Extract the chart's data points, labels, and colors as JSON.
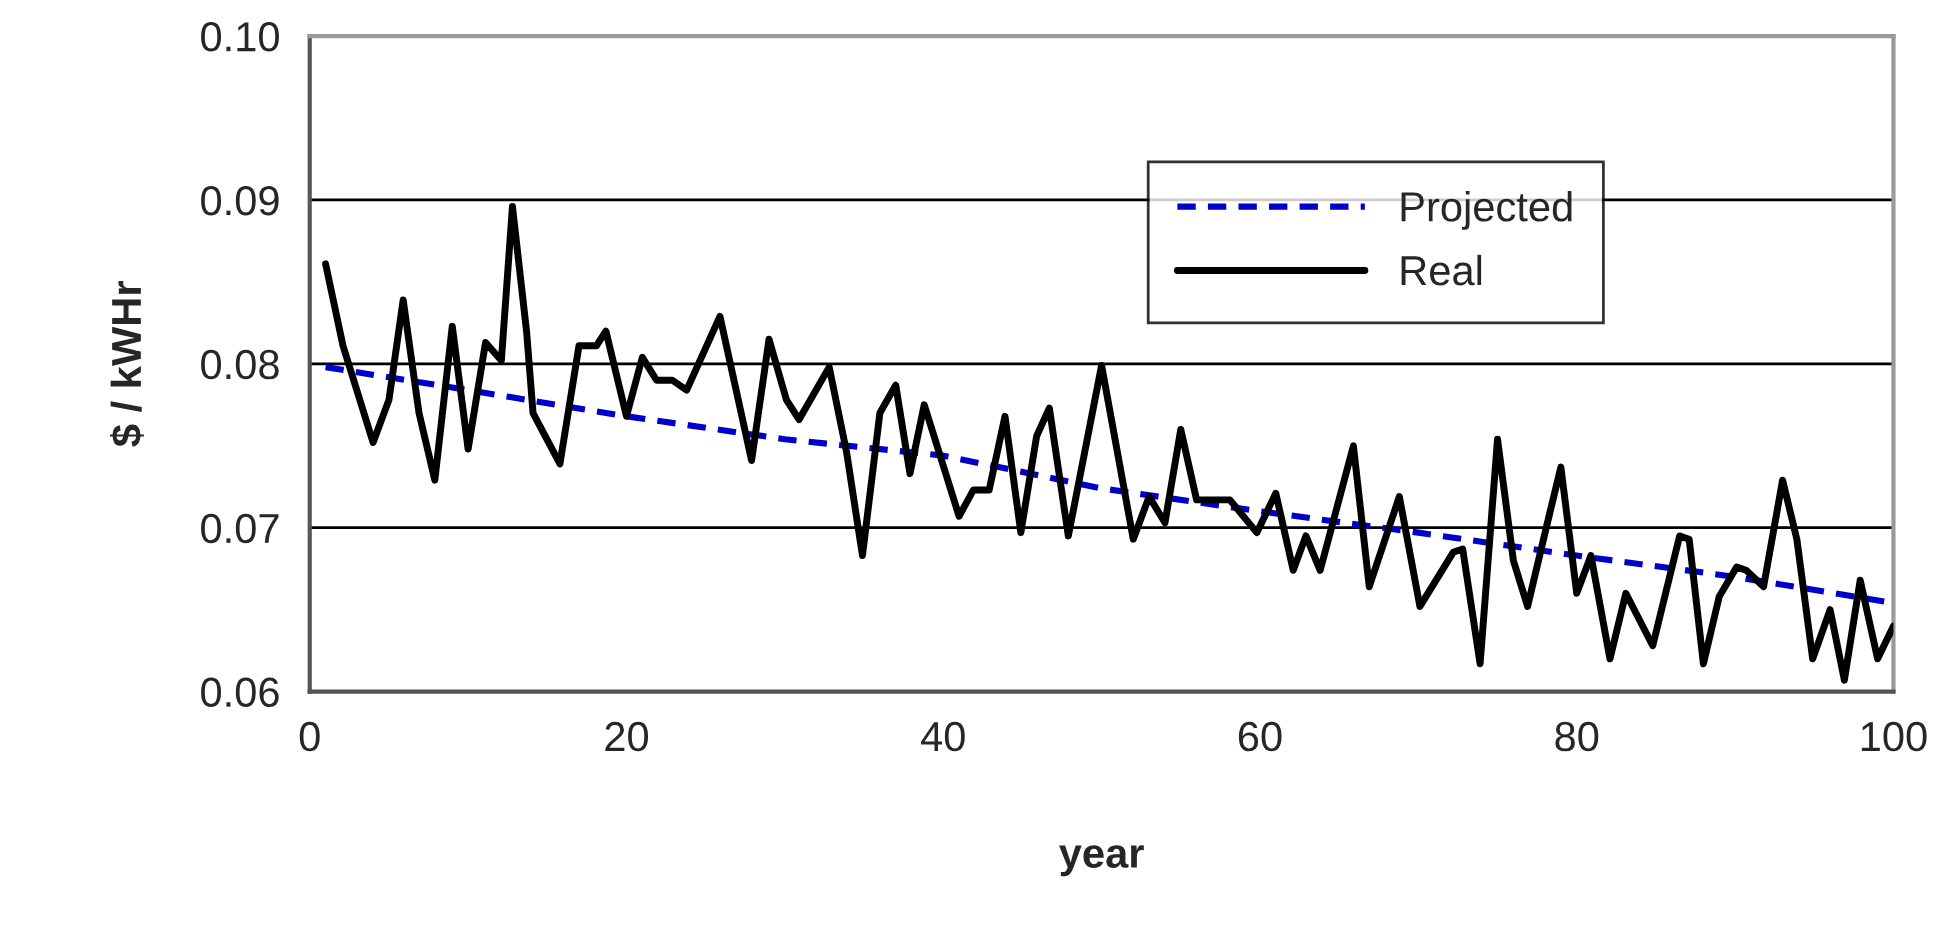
{
  "chart_data": {
    "type": "line",
    "xlabel": "year",
    "ylabel": "$ / kWHr",
    "xlim": [
      0,
      100
    ],
    "xticks": [
      0,
      20,
      40,
      60,
      80,
      100
    ],
    "ylim": [
      0.06,
      0.1
    ],
    "yticks": [
      {
        "value": 0.06,
        "label": "0.06"
      },
      {
        "value": 0.07,
        "label": "0.07"
      },
      {
        "value": 0.08,
        "label": "0.08"
      },
      {
        "value": 0.09,
        "label": "0.09"
      },
      {
        "value": 0.1,
        "label": "0.10"
      }
    ],
    "grid": "y",
    "legend": "top right",
    "marker": "none",
    "series": [
      {
        "name": "Projected",
        "color": "#0000cc",
        "line_style": "dashed",
        "x": [
          1,
          10,
          20,
          30,
          40,
          50,
          60,
          70,
          80,
          90,
          100
        ],
        "values": [
          0.0798,
          0.0784,
          0.0768,
          0.0754,
          0.0744,
          0.0724,
          0.071,
          0.0697,
          0.0683,
          0.067,
          0.0654
        ]
      },
      {
        "name": "Real",
        "color": "#000000",
        "line_style": "solid",
        "x": [
          1,
          2.1,
          4,
          5,
          5.9,
          6.9,
          7.9,
          9,
          10,
          11.1,
          12.1,
          12.8,
          13.7,
          14.1,
          15.8,
          17,
          18.1,
          18.7,
          20,
          21,
          21.9,
          22.9,
          23.8,
          25.9,
          27.9,
          29,
          30.1,
          30.9,
          32.8,
          33.9,
          34.9,
          36,
          37,
          37.9,
          38.8,
          41,
          41.9,
          42.9,
          43.9,
          44.9,
          45.9,
          46.7,
          47.9,
          50,
          52,
          53,
          54,
          55,
          56,
          58.1,
          59.8,
          61,
          62.1,
          62.9,
          63.8,
          65.9,
          66.9,
          68.8,
          70.1,
          72.2,
          72.8,
          73.9,
          75,
          76,
          76.9,
          78.1,
          79,
          80,
          80.9,
          82.1,
          83.1,
          84.8,
          86.5,
          87.1,
          88,
          89,
          90.1,
          90.7,
          91.8,
          93,
          93.9,
          94.9,
          96,
          96.9,
          97.9,
          99,
          100
        ],
        "values": [
          0.0861,
          0.0811,
          0.0752,
          0.0778,
          0.0839,
          0.077,
          0.0729,
          0.0823,
          0.0748,
          0.0813,
          0.0802,
          0.0896,
          0.0819,
          0.077,
          0.0739,
          0.0811,
          0.0811,
          0.082,
          0.0768,
          0.0804,
          0.079,
          0.079,
          0.0784,
          0.0829,
          0.0741,
          0.0815,
          0.0778,
          0.0766,
          0.0798,
          0.0746,
          0.0683,
          0.077,
          0.0787,
          0.0733,
          0.0775,
          0.0707,
          0.0723,
          0.0723,
          0.0768,
          0.0697,
          0.0756,
          0.0773,
          0.0695,
          0.0799,
          0.0693,
          0.0719,
          0.0703,
          0.076,
          0.0717,
          0.0717,
          0.0697,
          0.0721,
          0.0674,
          0.0695,
          0.0674,
          0.075,
          0.0664,
          0.0719,
          0.0652,
          0.0685,
          0.0687,
          0.0617,
          0.0754,
          0.068,
          0.0652,
          0.0701,
          0.0737,
          0.066,
          0.0683,
          0.062,
          0.066,
          0.0628,
          0.0695,
          0.0693,
          0.0617,
          0.0658,
          0.0676,
          0.0674,
          0.0664,
          0.0729,
          0.0693,
          0.062,
          0.065,
          0.0607,
          0.0668,
          0.062,
          0.064
        ]
      }
    ]
  }
}
